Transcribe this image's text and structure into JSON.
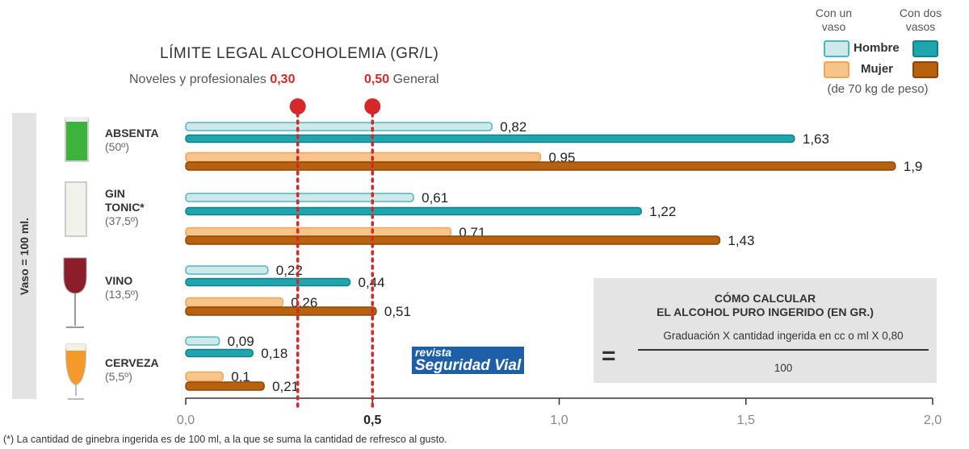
{
  "chart_data": {
    "type": "bar",
    "orientation": "horizontal",
    "title": "LÍMITE LEGAL ALCOHOLEMIA (GR/L)",
    "xlim": [
      0,
      2.0
    ],
    "xticks": [
      "0,0",
      "0,5",
      "1,0",
      "1,5",
      "2,0"
    ],
    "xtick_values": [
      0,
      0.5,
      1.0,
      1.5,
      2.0
    ],
    "categories": [
      {
        "name": "ABSENTA",
        "degree": "(50º)"
      },
      {
        "name": "GIN TONIC*",
        "degree": "(37,5º)"
      },
      {
        "name": "VINO",
        "degree": "(13,5º)"
      },
      {
        "name": "CERVEZA",
        "degree": "(5,5º)"
      }
    ],
    "series": [
      {
        "name": "Hombre - Con un vaso",
        "color": "#cfe8ea",
        "edge": "#4cb8c0",
        "values": [
          0.82,
          0.61,
          0.22,
          0.09
        ],
        "labels": [
          "0,82",
          "0,61",
          "0,22",
          "0,09"
        ]
      },
      {
        "name": "Hombre - Con dos vasos",
        "color": "#1fa5ad",
        "edge": "#118088",
        "values": [
          1.63,
          1.22,
          0.44,
          0.18
        ],
        "labels": [
          "1,63",
          "1,22",
          "0,44",
          "0,18"
        ]
      },
      {
        "name": "Mujer - Con un vaso",
        "color": "#f7c48a",
        "edge": "#f0a656",
        "values": [
          0.95,
          0.71,
          0.26,
          0.1
        ],
        "labels": [
          "0,95",
          "0,71",
          "0,26",
          "0,1"
        ]
      },
      {
        "name": "Mujer - Con dos vasos",
        "color": "#b8620f",
        "edge": "#8a4708",
        "values": [
          1.9,
          1.43,
          0.51,
          0.21
        ],
        "labels": [
          "1,9",
          "1,43",
          "0,51",
          "0,21"
        ]
      }
    ],
    "reference_lines": [
      {
        "value": 0.3,
        "label_text": "Noveles y profesionales",
        "label_value": "0,30",
        "color": "#d62828"
      },
      {
        "value": 0.5,
        "label_value": "0,50",
        "label_text": "General",
        "color": "#d62828"
      }
    ],
    "legend": {
      "placement": "top-right",
      "col1": "Con un vaso",
      "col2": "Con dos vasos",
      "rows": [
        "Hombre",
        "Mujer"
      ],
      "note": "(de 70 kg de peso)"
    }
  },
  "side_label": "Vaso = 100 ml.",
  "formula": {
    "title1": "CÓMO CALCULAR",
    "title2": "EL ALCOHOL PURO INGERIDO (EN GR.)",
    "numerator": "Graduación X cantidad ingerida en cc o ml X 0,80",
    "denominator": "100",
    "equals": "="
  },
  "logo": {
    "line1": "revista",
    "line2": "Seguridad Vial"
  },
  "footnote": "(*) La cantidad de ginebra ingerida es de 100 ml, a la que se suma la cantidad de refresco al gusto.",
  "icons": [
    "absinthe-glass-icon",
    "gin-tonic-glass-icon",
    "wine-glass-icon",
    "beer-glass-icon"
  ]
}
